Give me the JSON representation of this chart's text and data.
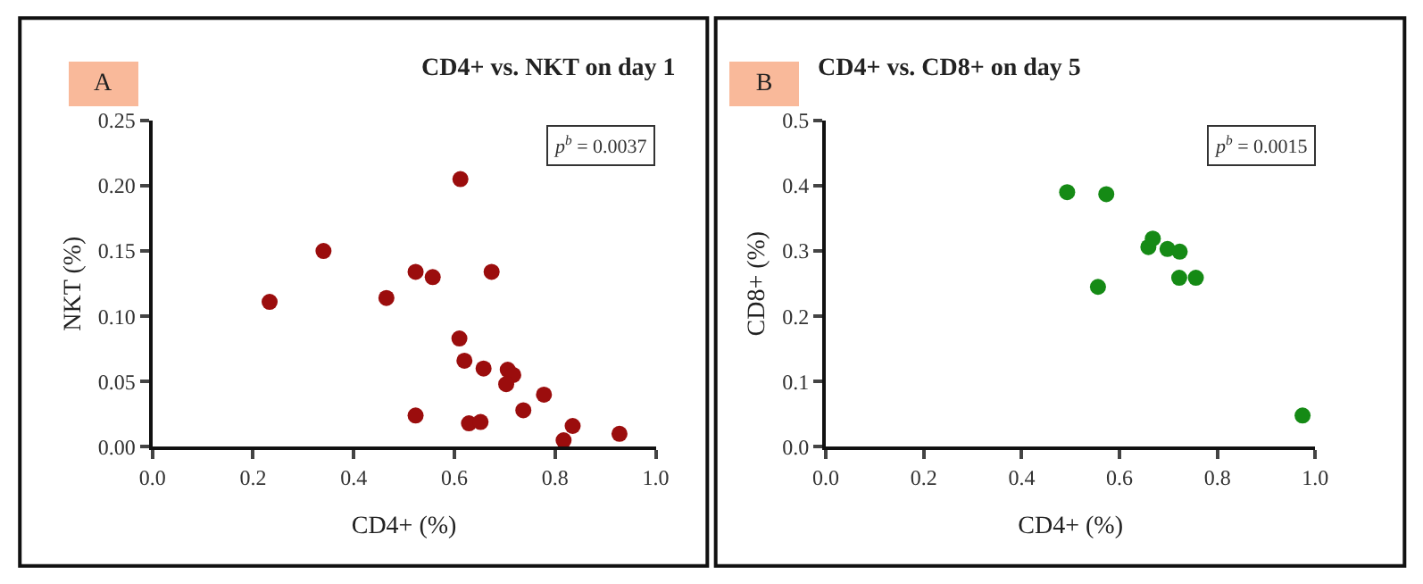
{
  "chart_data": [
    {
      "type": "scatter",
      "title": "CD4+ vs. NKT on day 1",
      "xlabel": "CD4+ (%)",
      "ylabel": "NKT (%)",
      "annotations": [
        "A",
        "p$^{b}$ = 0.0037"
      ],
      "x": [
        0.233,
        0.34,
        0.465,
        0.523,
        0.557,
        0.612,
        0.674,
        0.61,
        0.62,
        0.658,
        0.706,
        0.717,
        0.703,
        0.778,
        0.737,
        0.523,
        0.629,
        0.652,
        0.835,
        0.817,
        0.928
      ],
      "series": [
        {
          "color": "#9b0d0d",
          "values": [
            0.111,
            0.15,
            0.114,
            0.134,
            0.13,
            0.205,
            0.134,
            0.083,
            0.066,
            0.06,
            0.059,
            0.055,
            0.048,
            0.04,
            0.028,
            0.024,
            0.018,
            0.019,
            0.016,
            0.005,
            0.01
          ]
        }
      ],
      "xlim": [
        0,
        1
      ],
      "xticks": [
        "0.0",
        0.2,
        0.4,
        0.6,
        0.8,
        "1.0"
      ],
      "ylim": [
        0,
        0.25
      ],
      "yticks": [
        "0.00",
        0.05,
        "0.10",
        0.15,
        "0.20",
        0.25
      ],
      "marker": "circle"
    },
    {
      "type": "scatter",
      "title": "CD4+ vs. CD8+ on day 5",
      "xlabel": "CD4+ (%)",
      "ylabel": "CD8+ (%)",
      "annotations": [
        "B",
        "p$^{b}$ = 0.0015"
      ],
      "x": [
        0.493,
        0.573,
        0.556,
        0.659,
        0.668,
        0.698,
        0.723,
        0.722,
        0.756,
        0.974
      ],
      "series": [
        {
          "color": "#158a15",
          "values": [
            0.39,
            0.387,
            0.245,
            0.306,
            0.319,
            0.303,
            0.299,
            0.259,
            0.259,
            0.048
          ]
        }
      ],
      "xlim": [
        0,
        1
      ],
      "xticks": [
        "0.0",
        0.2,
        0.4,
        0.6,
        0.8,
        "1.0"
      ],
      "ylim": [
        0,
        0.5
      ],
      "yticks": [
        "0.0",
        0.1,
        0.2,
        0.3,
        0.4,
        0.5
      ],
      "marker": "circle"
    }
  ]
}
